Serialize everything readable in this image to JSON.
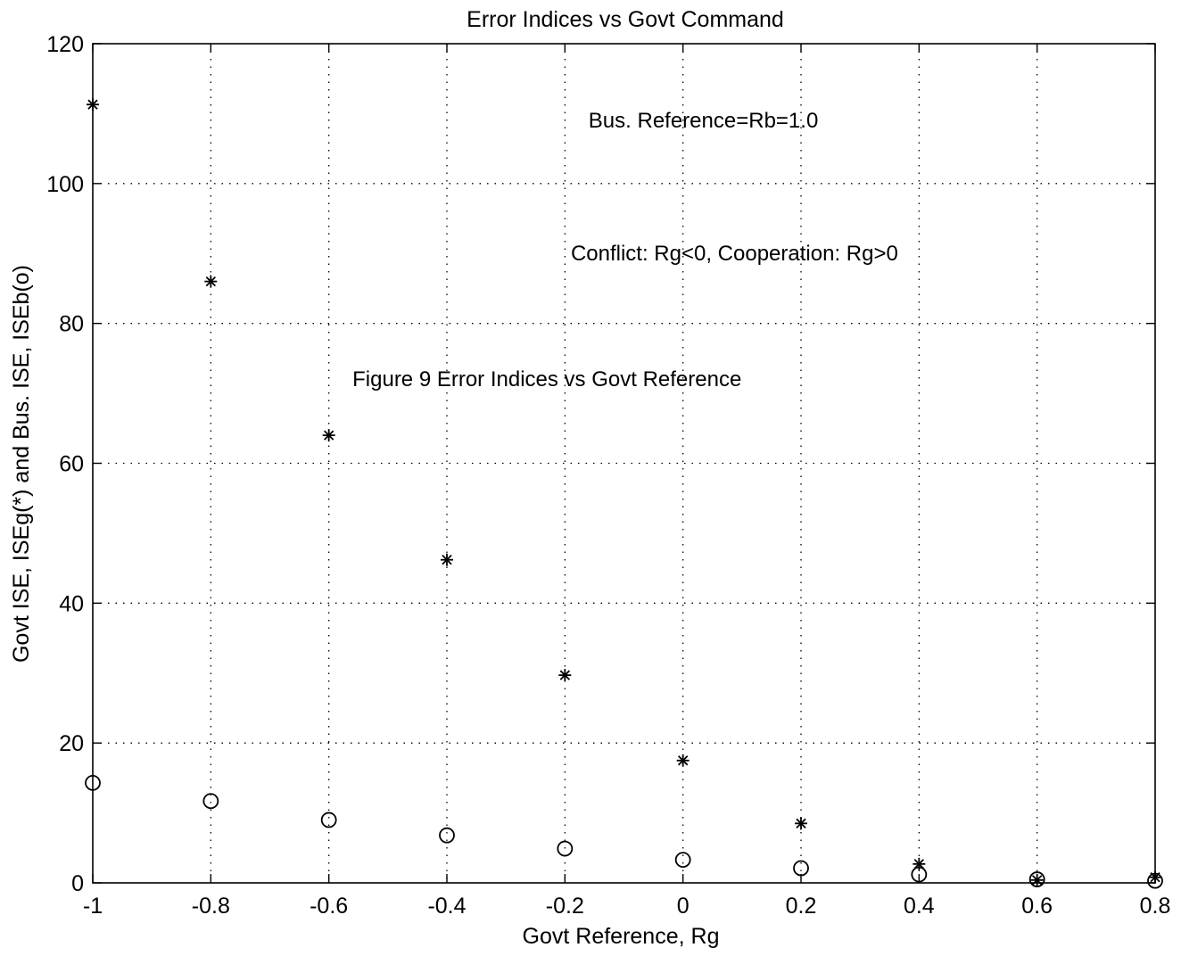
{
  "chart_data": {
    "type": "scatter",
    "title": "Error Indices vs Govt Command",
    "xlabel": "Govt Reference, Rg",
    "ylabel": "Govt ISE, ISEg(*)  and Bus. ISE, ISEb(o)",
    "xlim": [
      -1,
      0.8
    ],
    "ylim": [
      0,
      120
    ],
    "xticks": [
      -1,
      -0.8,
      -0.6,
      -0.4,
      -0.2,
      0,
      0.2,
      0.4,
      0.6,
      0.8
    ],
    "xtick_labels": [
      "-1",
      "-0.8",
      "-0.6",
      "-0.4",
      "-0.2",
      "0",
      "0.2",
      "0.4",
      "0.6",
      "0.8"
    ],
    "yticks": [
      0,
      20,
      40,
      60,
      80,
      100,
      120
    ],
    "ytick_labels": [
      "0",
      "20",
      "40",
      "60",
      "80",
      "100",
      "120"
    ],
    "grid": true,
    "series": [
      {
        "marker": "asterisk",
        "x": [
          -1,
          -0.8,
          -0.6,
          -0.4,
          -0.2,
          0,
          0.2,
          0.4,
          0.6,
          0.8
        ],
        "y": [
          111.3,
          86,
          64,
          46.2,
          29.7,
          17.5,
          8.5,
          2.7,
          0.4,
          0.8
        ]
      },
      {
        "marker": "circle",
        "x": [
          -1,
          -0.8,
          -0.6,
          -0.4,
          -0.2,
          0,
          0.2,
          0.4,
          0.6,
          0.8
        ],
        "y": [
          14.3,
          11.7,
          9,
          6.8,
          4.9,
          3.3,
          2.1,
          1.2,
          0.5,
          0.3
        ]
      }
    ],
    "annotations": [
      {
        "text": "Bus. Reference=Rb=1.0",
        "x": -0.16,
        "y": 108
      },
      {
        "text": "Conflict: Rg<0, Cooperation: Rg>0",
        "x": -0.19,
        "y": 89
      },
      {
        "text": "Figure 9 Error Indices vs Govt Reference",
        "x": -0.56,
        "y": 71
      }
    ]
  }
}
